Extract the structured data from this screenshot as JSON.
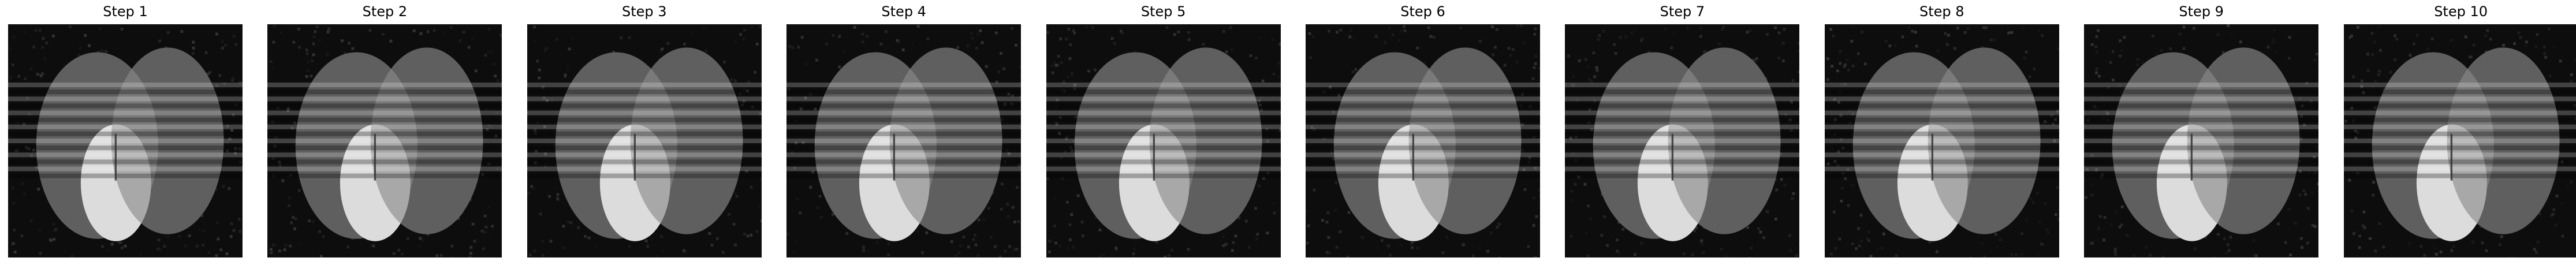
{
  "figure": {
    "panels": [
      {
        "title": "Step 1"
      },
      {
        "title": "Step 2"
      },
      {
        "title": "Step 3"
      },
      {
        "title": "Step 4"
      },
      {
        "title": "Step 5"
      },
      {
        "title": "Step 6"
      },
      {
        "title": "Step 7"
      },
      {
        "title": "Step 8"
      },
      {
        "title": "Step 9"
      },
      {
        "title": "Step 10"
      }
    ],
    "colors": {
      "background": "#0d0d0d",
      "ellipse": "#5f5f5f",
      "overlap": "#7a7a7a",
      "bright_region": "#dcdcdc",
      "stripe_light": "#ffffff",
      "stripe_dark": "#000000"
    }
  }
}
